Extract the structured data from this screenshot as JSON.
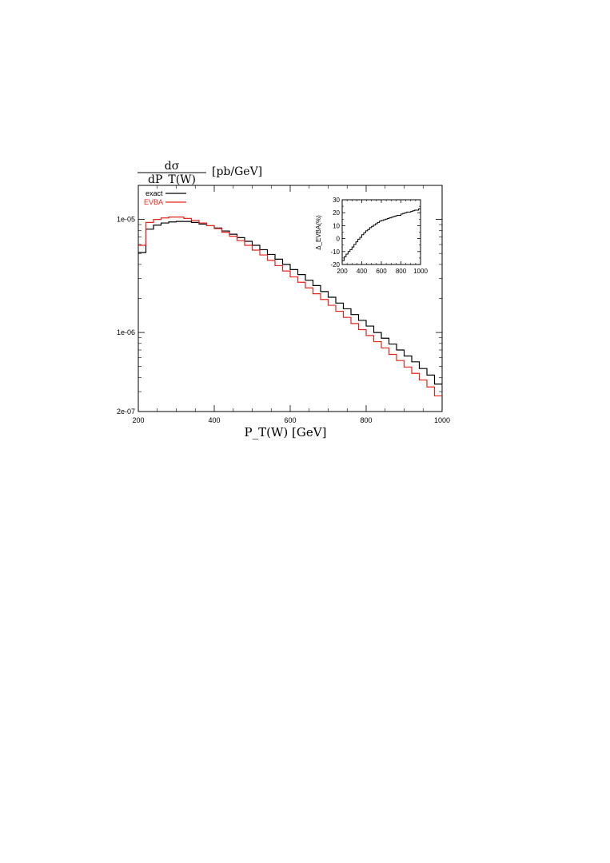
{
  "chart_data": [
    {
      "type": "line",
      "ylabel_numerator": "dσ",
      "ylabel_denominator": "dP_T(W)",
      "ylabel_unit": "[pb/GeV]",
      "xlabel": "P_T(W) [GeV]",
      "xlim": [
        200,
        1000
      ],
      "ylim": [
        2e-07,
        2e-05
      ],
      "yscale": "log",
      "xticks": [
        200,
        400,
        600,
        800,
        1000
      ],
      "xtick_labels": [
        "200",
        "400",
        "600",
        "800",
        "1000"
      ],
      "yticks": [
        2e-07,
        1e-06,
        1e-05
      ],
      "ytick_labels": [
        "2e-07",
        "1e-06",
        "1e-05"
      ],
      "legend_position": "top-left",
      "bin_edges": [
        200,
        220,
        240,
        260,
        280,
        300,
        320,
        340,
        360,
        380,
        400,
        420,
        440,
        460,
        480,
        500,
        520,
        540,
        560,
        580,
        600,
        620,
        640,
        660,
        680,
        700,
        720,
        740,
        760,
        780,
        800,
        820,
        840,
        860,
        880,
        900,
        920,
        940,
        960,
        980,
        1000
      ],
      "series": [
        {
          "name": "exact",
          "color": "#000000",
          "values": [
            5.1e-06,
            8.2e-06,
            8.9e-06,
            9.3e-06,
            9.5e-06,
            9.6e-06,
            9.6e-06,
            9.4e-06,
            9.1e-06,
            8.8e-06,
            8.4e-06,
            7.9e-06,
            7.4e-06,
            6.9e-06,
            6.4e-06,
            5.9e-06,
            5.4e-06,
            4.9e-06,
            4.45e-06,
            4e-06,
            3.6e-06,
            3.25e-06,
            2.9e-06,
            2.6e-06,
            2.3e-06,
            2.05e-06,
            1.82e-06,
            1.62e-06,
            1.44e-06,
            1.28e-06,
            1.14e-06,
            1e-06,
            8.9e-07,
            7.9e-07,
            7e-07,
            6.2e-07,
            5.5e-07,
            4.8e-07,
            4.2e-07,
            3.5e-07
          ]
        },
        {
          "name": "EVBA",
          "color": "#e8231c",
          "values": [
            5.9e-06,
            9.4e-06,
            1e-05,
            1.03e-05,
            1.05e-05,
            1.05e-05,
            1.02e-05,
            9.8e-06,
            9.3e-06,
            8.8e-06,
            8.3e-06,
            7.7e-06,
            7.1e-06,
            6.5e-06,
            5.9e-06,
            5.35e-06,
            4.85e-06,
            4.35e-06,
            3.9e-06,
            3.5e-06,
            3.1e-06,
            2.78e-06,
            2.48e-06,
            2.2e-06,
            1.96e-06,
            1.74e-06,
            1.54e-06,
            1.36e-06,
            1.2e-06,
            1.06e-06,
            9.4e-07,
            8.3e-07,
            7.3e-07,
            6.4e-07,
            5.65e-07,
            4.95e-07,
            4.35e-07,
            3.8e-07,
            3.3e-07,
            2.75e-07
          ]
        }
      ]
    },
    {
      "type": "line",
      "ylabel": "Δ_EVBA(%)",
      "xlim": [
        200,
        1000
      ],
      "ylim": [
        -20,
        30
      ],
      "xticks": [
        200,
        400,
        600,
        800,
        1000
      ],
      "xtick_labels": [
        "200",
        "400",
        "600",
        "800",
        "1000"
      ],
      "yticks": [
        -20,
        -10,
        0,
        10,
        20,
        30
      ],
      "ytick_labels": [
        "-20",
        "-10",
        "0",
        "10",
        "20",
        "30"
      ],
      "bin_edges": [
        200,
        220,
        240,
        260,
        280,
        300,
        320,
        340,
        360,
        380,
        400,
        420,
        440,
        460,
        480,
        500,
        520,
        540,
        560,
        580,
        600,
        620,
        640,
        660,
        680,
        700,
        720,
        740,
        760,
        780,
        800,
        820,
        840,
        860,
        880,
        900,
        920,
        940,
        960,
        980,
        1000
      ],
      "series": [
        {
          "color": "#000000",
          "values": [
            -17,
            -14,
            -12,
            -10,
            -8.5,
            -6.5,
            -4.5,
            -2.5,
            -0.5,
            1,
            3,
            4.5,
            6,
            7,
            8.5,
            9.5,
            10.5,
            11.5,
            12.5,
            13.5,
            14,
            14.5,
            15,
            15.5,
            16,
            16.5,
            17,
            17.5,
            18,
            18,
            19,
            19.5,
            20,
            20.5,
            20.5,
            21,
            21.5,
            22,
            22,
            23
          ]
        }
      ]
    }
  ],
  "labels": {
    "main_legend": [
      "exact",
      "EVBA"
    ]
  }
}
